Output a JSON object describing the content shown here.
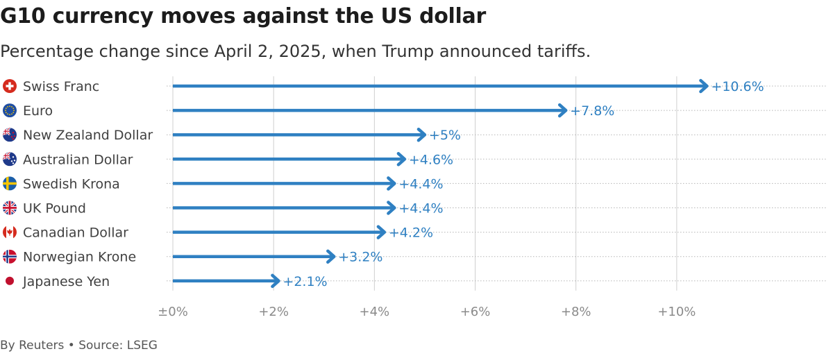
{
  "header": {
    "title": "G10 currency moves against the US dollar",
    "subtitle": "Percentage change since April 2, 2025, when Trump announced tariffs."
  },
  "footer": {
    "byline": "By Reuters",
    "separator": "•",
    "source": "Source: LSEG"
  },
  "colors": {
    "bar": "#2f80c2",
    "grid": "#cfcfcf"
  },
  "chart_data": {
    "type": "bar",
    "orientation": "horizontal",
    "title": "G10 currency moves against the US dollar",
    "subtitle": "Percentage change since April 2, 2025, when Trump announced tariffs.",
    "categories": [
      "Swiss Franc",
      "Euro",
      "New Zealand Dollar",
      "Australian Dollar",
      "Swedish Krona",
      "UK Pound",
      "Canadian Dollar",
      "Norwegian Krone",
      "Japanese Yen"
    ],
    "flag_icons": [
      "swiss-flag-icon",
      "eu-flag-icon",
      "new-zealand-flag-icon",
      "australia-flag-icon",
      "sweden-flag-icon",
      "uk-flag-icon",
      "canada-flag-icon",
      "norway-flag-icon",
      "japan-flag-icon"
    ],
    "values": [
      10.6,
      7.8,
      5,
      4.6,
      4.4,
      4.4,
      4.2,
      3.2,
      2.1
    ],
    "value_labels": [
      "+10.6%",
      "+7.8%",
      "+5%",
      "+4.6%",
      "+4.4%",
      "+4.4%",
      "+4.2%",
      "+3.2%",
      "+2.1%"
    ],
    "xlim": [
      0,
      11.6
    ],
    "xticks": [
      0,
      2,
      4,
      6,
      8,
      10
    ],
    "xtick_labels": [
      "±0%",
      "+2%",
      "+4%",
      "+6%",
      "+8%",
      "+10%"
    ],
    "grid": true,
    "legend": "none"
  }
}
